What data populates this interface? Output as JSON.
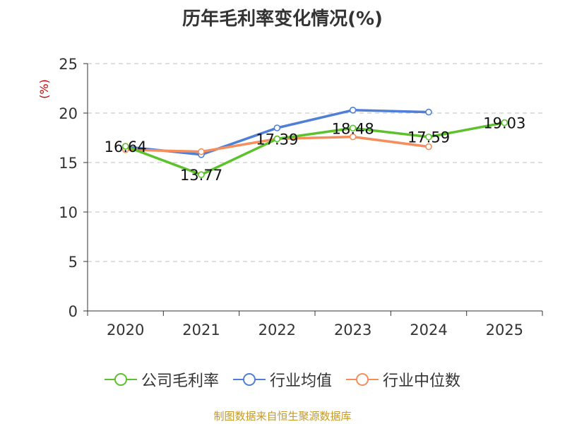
{
  "title": "历年毛利率变化情况(%)",
  "source": "制图数据来自恒生聚源数据库",
  "colors": {
    "company": "#5cc22c",
    "industry_avg": "#4f7fd6",
    "industry_median": "#f58e5c",
    "ylabel": "#cc0000",
    "grid": "#cccccc",
    "axis": "#333333"
  },
  "chart_data": {
    "type": "line",
    "title": "历年毛利率变化情况(%)",
    "ylabel": "(%)",
    "xlabel": "",
    "categories": [
      "2020",
      "2021",
      "2022",
      "2023",
      "2024",
      "2025"
    ],
    "ylim": [
      0,
      25
    ],
    "yticks": [
      0,
      5,
      10,
      15,
      20,
      25
    ],
    "grid": true,
    "legend_position": "bottom",
    "series": [
      {
        "name": "公司毛利率",
        "values": [
          16.64,
          13.77,
          17.39,
          18.48,
          17.59,
          19.03
        ],
        "labels": [
          "16.64",
          "13.77",
          "17.39",
          "18.48",
          "17.59",
          "19.03"
        ]
      },
      {
        "name": "行业均值",
        "values": [
          16.6,
          15.8,
          18.5,
          20.3,
          20.1,
          null
        ]
      },
      {
        "name": "行业中位数",
        "values": [
          16.3,
          16.1,
          17.4,
          17.6,
          16.6,
          null
        ]
      }
    ]
  }
}
